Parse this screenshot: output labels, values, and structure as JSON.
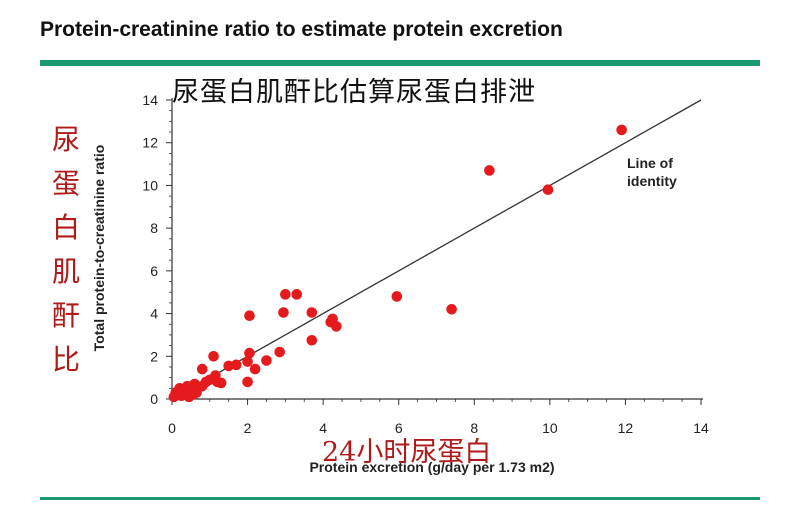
{
  "slide": {
    "title": "Protein-creatinine ratio to estimate protein excretion",
    "accent_color": "#1a9a6c"
  },
  "overlay": {
    "cn_title": "尿蛋白肌酐比估算尿蛋白排泄",
    "cn_ylabel": "尿蛋白肌酐比",
    "cn_xlabel": "24小时尿蛋白",
    "cn_color": "#b01a1a"
  },
  "chart_data": {
    "type": "scatter",
    "xlabel": "Protein excretion (g/day per 1.73 m2)",
    "ylabel": "Total protein-to-creatinine ratio",
    "xlim": [
      0,
      14
    ],
    "ylim": [
      0,
      14
    ],
    "xticks": [
      0,
      2,
      4,
      6,
      8,
      10,
      12,
      14
    ],
    "yticks": [
      0,
      2,
      4,
      6,
      8,
      10,
      12,
      14
    ],
    "grid": false,
    "point_color": "#e41a1c",
    "series": [
      {
        "points": [
          [
            0.05,
            0.1
          ],
          [
            0.1,
            0.3
          ],
          [
            0.15,
            0.2
          ],
          [
            0.2,
            0.5
          ],
          [
            0.25,
            0.15
          ],
          [
            0.3,
            0.4
          ],
          [
            0.35,
            0.25
          ],
          [
            0.4,
            0.6
          ],
          [
            0.45,
            0.1
          ],
          [
            0.5,
            0.45
          ],
          [
            0.55,
            0.2
          ],
          [
            0.6,
            0.7
          ],
          [
            0.65,
            0.3
          ],
          [
            0.7,
            0.55
          ],
          [
            0.8,
            0.6
          ],
          [
            0.8,
            1.4
          ],
          [
            0.9,
            0.8
          ],
          [
            1.0,
            0.9
          ],
          [
            1.1,
            2.0
          ],
          [
            1.15,
            1.1
          ],
          [
            1.2,
            0.8
          ],
          [
            1.3,
            0.75
          ],
          [
            1.5,
            1.55
          ],
          [
            1.7,
            1.6
          ],
          [
            2.0,
            0.8
          ],
          [
            2.0,
            1.75
          ],
          [
            2.05,
            2.15
          ],
          [
            2.05,
            3.9
          ],
          [
            2.2,
            1.4
          ],
          [
            2.5,
            1.8
          ],
          [
            2.85,
            2.2
          ],
          [
            2.95,
            4.05
          ],
          [
            3.0,
            4.9
          ],
          [
            3.3,
            4.9
          ],
          [
            3.7,
            2.75
          ],
          [
            3.7,
            4.05
          ],
          [
            4.2,
            3.6
          ],
          [
            4.25,
            3.75
          ],
          [
            4.35,
            3.4
          ],
          [
            5.95,
            4.8
          ],
          [
            7.4,
            4.2
          ],
          [
            8.4,
            10.7
          ],
          [
            9.95,
            9.8
          ],
          [
            11.9,
            12.6
          ]
        ]
      }
    ],
    "annotations": [
      {
        "text": "Line of identity",
        "lines": [
          "Line of",
          "identity"
        ]
      }
    ],
    "reference_line": {
      "from": [
        0,
        0
      ],
      "to": [
        14,
        14
      ]
    }
  }
}
